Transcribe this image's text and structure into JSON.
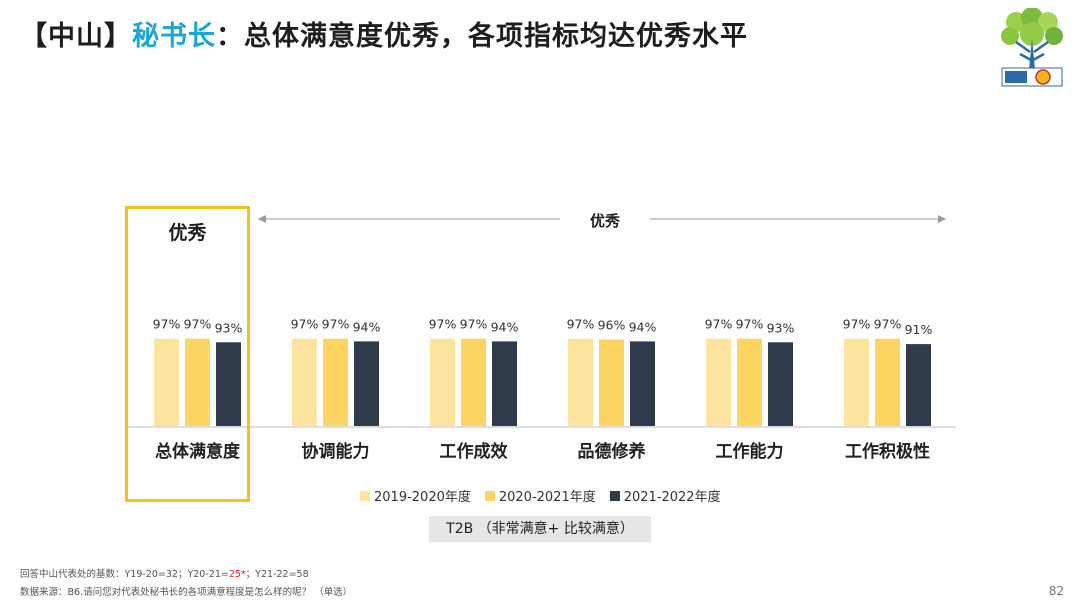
{
  "title": {
    "prefix": "【中山】",
    "highlight": "秘书长",
    "rest": "：总体满意度优秀，各项指标均达优秀水平"
  },
  "highlight_label": "优秀",
  "range_label": "优秀",
  "chart_data": {
    "type": "bar",
    "categories": [
      "总体满意度",
      "协调能力",
      "工作成效",
      "品德修养",
      "工作能力",
      "工作积极性"
    ],
    "series": [
      {
        "name": "2019-2020年度",
        "color": "#fde49e",
        "values": [
          97,
          97,
          97,
          97,
          97,
          97
        ]
      },
      {
        "name": "2020-2021年度",
        "color": "#fbd461",
        "values": [
          97,
          97,
          97,
          96,
          97,
          97
        ]
      },
      {
        "name": "2021-2022年度",
        "color": "#2f3a4a",
        "values": [
          93,
          94,
          94,
          94,
          93,
          91
        ]
      }
    ],
    "value_suffix": "%",
    "legend_position": "bottom"
  },
  "t2b_label": "T2B （非常满意+ 比较满意）",
  "footnotes": {
    "base_prefix": "回答中山代表处的基数：Y19-20=32；Y20-21=",
    "base_highlight": "25*",
    "base_suffix": "；Y21-22=58",
    "source": "数据来源：B6.请问您对代表处秘书长的各项满意程度是怎么样的呢？ （单选）"
  },
  "page_number": "82",
  "logo": {
    "icon": "tree-30th-anniversary-logo"
  }
}
